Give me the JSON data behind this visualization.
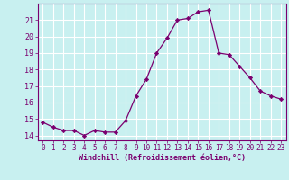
{
  "x": [
    0,
    1,
    2,
    3,
    4,
    5,
    6,
    7,
    8,
    9,
    10,
    11,
    12,
    13,
    14,
    15,
    16,
    17,
    18,
    19,
    20,
    21,
    22,
    23
  ],
  "y": [
    14.8,
    14.5,
    14.3,
    14.3,
    14.0,
    14.3,
    14.2,
    14.2,
    14.9,
    16.4,
    17.4,
    19.0,
    19.9,
    21.0,
    21.1,
    21.5,
    21.6,
    19.0,
    18.9,
    18.2,
    17.5,
    16.7,
    16.4,
    16.2
  ],
  "line_color": "#7b0070",
  "marker": "D",
  "marker_size": 2.2,
  "bg_color": "#c8f0f0",
  "grid_color": "#ffffff",
  "xlabel": "Windchill (Refroidissement éolien,°C)",
  "xlabel_color": "#7b0070",
  "tick_color": "#7b0070",
  "spine_color": "#7b0070",
  "ylim": [
    13.7,
    22.0
  ],
  "xlim": [
    -0.5,
    23.5
  ],
  "yticks": [
    14,
    15,
    16,
    17,
    18,
    19,
    20,
    21
  ],
  "xticks": [
    0,
    1,
    2,
    3,
    4,
    5,
    6,
    7,
    8,
    9,
    10,
    11,
    12,
    13,
    14,
    15,
    16,
    17,
    18,
    19,
    20,
    21,
    22,
    23
  ],
  "tick_fontsize": 5.5,
  "xlabel_fontsize": 6.0
}
